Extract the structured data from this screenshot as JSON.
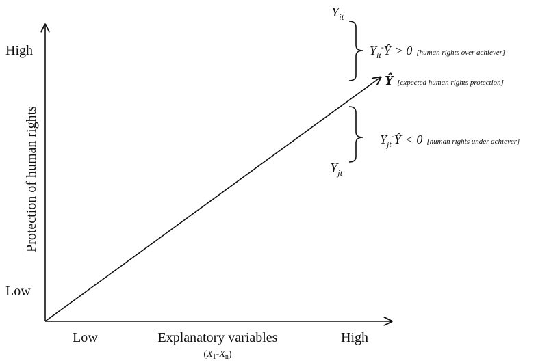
{
  "axes": {
    "y_high": "High",
    "y_low": "Low",
    "y_title": "Protection of human rights",
    "x_low": "Low",
    "x_high": "High",
    "x_title": "Explanatory variables",
    "x_note": [
      "(",
      "X",
      "1",
      "-",
      "X",
      "n",
      ")"
    ]
  },
  "labels": {
    "y_it": [
      "Y",
      "it"
    ],
    "over": [
      "Y",
      "it",
      "-",
      "Ŷ",
      "> 0",
      "[human rights over achiever]"
    ],
    "expected": [
      "Ŷ",
      "[expected human rights protection]"
    ],
    "under": [
      "Y",
      "jt",
      "-",
      "Ŷ",
      "< 0",
      "[human rights under achiever]"
    ],
    "y_jt": [
      "Y",
      "jt"
    ]
  }
}
